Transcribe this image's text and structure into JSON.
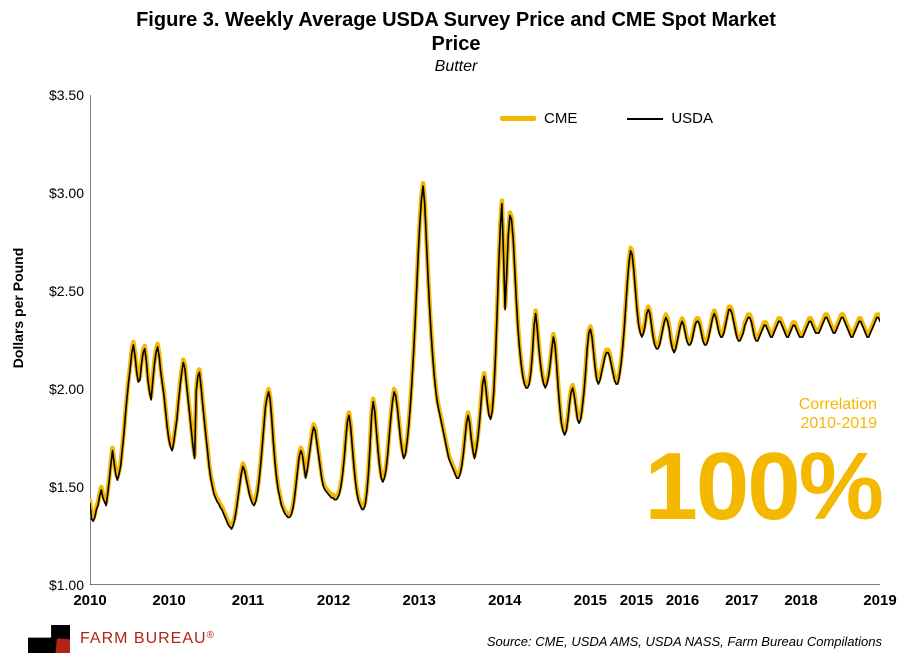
{
  "chart": {
    "type": "line",
    "title_line1": "Figure 3. Weekly Average USDA Survey Price and CME Spot Market",
    "title_line2": "Price",
    "subtitle": "Butter",
    "title_fontsize": 20,
    "subtitle_fontsize": 16,
    "ylabel": "Dollars per Pound",
    "ylabel_fontsize": 14,
    "background_color": "#ffffff",
    "axis_color": "#000000",
    "ylim": [
      1.0,
      3.5
    ],
    "yticks": [
      1.0,
      1.5,
      2.0,
      2.5,
      3.0,
      3.5
    ],
    "ytick_labels": [
      "$1.00",
      "$1.50",
      "$2.00",
      "$2.50",
      "$3.00",
      "$3.50"
    ],
    "x_range_weeks": [
      0,
      480
    ],
    "xtick_positions": [
      0,
      48,
      96,
      148,
      200,
      252,
      304,
      332,
      360,
      396,
      432,
      480
    ],
    "xtick_labels": [
      "2010",
      "2010",
      "2011",
      "2012",
      "2013",
      "2014",
      "2015",
      "2015",
      "2016",
      "2017",
      "2018",
      "2019"
    ],
    "legend": {
      "items": [
        {
          "label": "CME",
          "color": "#f5b800",
          "width": 5
        },
        {
          "label": "USDA",
          "color": "#000000",
          "width": 2
        }
      ]
    },
    "series": {
      "cme": {
        "color": "#f5b800",
        "line_width": 4.5,
        "values": [
          1.43,
          1.35,
          1.34,
          1.36,
          1.4,
          1.42,
          1.47,
          1.5,
          1.46,
          1.44,
          1.42,
          1.48,
          1.55,
          1.63,
          1.7,
          1.64,
          1.58,
          1.55,
          1.58,
          1.62,
          1.7,
          1.78,
          1.88,
          1.97,
          2.05,
          2.12,
          2.2,
          2.24,
          2.18,
          2.1,
          2.05,
          2.06,
          2.14,
          2.2,
          2.22,
          2.16,
          2.06,
          2.0,
          1.96,
          2.05,
          2.14,
          2.2,
          2.23,
          2.18,
          2.1,
          2.04,
          1.98,
          1.9,
          1.82,
          1.76,
          1.72,
          1.7,
          1.74,
          1.8,
          1.86,
          1.95,
          2.03,
          2.1,
          2.15,
          2.12,
          2.04,
          1.96,
          1.88,
          1.8,
          1.72,
          1.66,
          2.0,
          2.08,
          2.1,
          2.03,
          1.94,
          1.86,
          1.78,
          1.7,
          1.62,
          1.56,
          1.52,
          1.48,
          1.46,
          1.44,
          1.43,
          1.41,
          1.4,
          1.38,
          1.36,
          1.34,
          1.32,
          1.31,
          1.3,
          1.32,
          1.35,
          1.4,
          1.46,
          1.52,
          1.58,
          1.62,
          1.6,
          1.56,
          1.52,
          1.48,
          1.45,
          1.43,
          1.42,
          1.44,
          1.48,
          1.54,
          1.62,
          1.72,
          1.82,
          1.92,
          1.97,
          2.0,
          1.96,
          1.86,
          1.74,
          1.64,
          1.56,
          1.5,
          1.46,
          1.42,
          1.4,
          1.38,
          1.37,
          1.36,
          1.36,
          1.37,
          1.4,
          1.45,
          1.52,
          1.6,
          1.67,
          1.7,
          1.68,
          1.62,
          1.56,
          1.6,
          1.66,
          1.72,
          1.78,
          1.82,
          1.8,
          1.74,
          1.68,
          1.62,
          1.56,
          1.52,
          1.5,
          1.49,
          1.48,
          1.47,
          1.46,
          1.46,
          1.45,
          1.45,
          1.46,
          1.48,
          1.52,
          1.58,
          1.66,
          1.76,
          1.85,
          1.88,
          1.82,
          1.72,
          1.62,
          1.54,
          1.48,
          1.44,
          1.42,
          1.4,
          1.4,
          1.42,
          1.48,
          1.58,
          1.72,
          1.88,
          1.95,
          1.9,
          1.8,
          1.7,
          1.62,
          1.56,
          1.54,
          1.56,
          1.6,
          1.68,
          1.78,
          1.87,
          1.95,
          2.0,
          1.98,
          1.92,
          1.84,
          1.76,
          1.7,
          1.66,
          1.68,
          1.74,
          1.82,
          1.92,
          2.04,
          2.18,
          2.34,
          2.52,
          2.7,
          2.86,
          2.98,
          3.05,
          2.96,
          2.78,
          2.6,
          2.44,
          2.3,
          2.18,
          2.08,
          2.0,
          1.94,
          1.9,
          1.86,
          1.82,
          1.78,
          1.74,
          1.7,
          1.66,
          1.64,
          1.62,
          1.6,
          1.58,
          1.56,
          1.56,
          1.58,
          1.62,
          1.68,
          1.76,
          1.84,
          1.88,
          1.84,
          1.76,
          1.7,
          1.66,
          1.7,
          1.76,
          1.84,
          1.94,
          2.04,
          2.08,
          2.02,
          1.94,
          1.88,
          1.86,
          1.9,
          2.0,
          2.18,
          2.4,
          2.64,
          2.84,
          2.96,
          2.7,
          2.42,
          2.6,
          2.8,
          2.9,
          2.88,
          2.78,
          2.62,
          2.46,
          2.32,
          2.22,
          2.14,
          2.08,
          2.04,
          2.02,
          2.02,
          2.04,
          2.1,
          2.2,
          2.34,
          2.4,
          2.32,
          2.22,
          2.14,
          2.08,
          2.04,
          2.02,
          2.04,
          2.08,
          2.14,
          2.22,
          2.28,
          2.24,
          2.14,
          2.02,
          1.92,
          1.84,
          1.8,
          1.78,
          1.8,
          1.86,
          1.94,
          2.0,
          2.02,
          1.98,
          1.92,
          1.86,
          1.84,
          1.86,
          1.92,
          2.0,
          2.1,
          2.22,
          2.3,
          2.32,
          2.28,
          2.2,
          2.12,
          2.06,
          2.04,
          2.06,
          2.1,
          2.14,
          2.18,
          2.2,
          2.2,
          2.18,
          2.14,
          2.1,
          2.06,
          2.04,
          2.04,
          2.08,
          2.14,
          2.22,
          2.32,
          2.44,
          2.56,
          2.66,
          2.72,
          2.7,
          2.62,
          2.52,
          2.42,
          2.34,
          2.3,
          2.28,
          2.3,
          2.34,
          2.4,
          2.42,
          2.4,
          2.34,
          2.28,
          2.24,
          2.22,
          2.22,
          2.24,
          2.28,
          2.32,
          2.36,
          2.38,
          2.36,
          2.32,
          2.26,
          2.22,
          2.2,
          2.22,
          2.26,
          2.3,
          2.34,
          2.36,
          2.34,
          2.3,
          2.26,
          2.24,
          2.24,
          2.26,
          2.3,
          2.34,
          2.36,
          2.36,
          2.34,
          2.3,
          2.26,
          2.24,
          2.24,
          2.26,
          2.3,
          2.34,
          2.38,
          2.4,
          2.38,
          2.34,
          2.3,
          2.28,
          2.28,
          2.3,
          2.34,
          2.38,
          2.42,
          2.42,
          2.4,
          2.36,
          2.32,
          2.28,
          2.26,
          2.26,
          2.28,
          2.3,
          2.34,
          2.36,
          2.38,
          2.38,
          2.36,
          2.32,
          2.28,
          2.26,
          2.26,
          2.28,
          2.3,
          2.32,
          2.34,
          2.34,
          2.32,
          2.3,
          2.28,
          2.28,
          2.3,
          2.32,
          2.34,
          2.36,
          2.36,
          2.34,
          2.32,
          2.3,
          2.28,
          2.28,
          2.3,
          2.32,
          2.34,
          2.34,
          2.32,
          2.3,
          2.28,
          2.28,
          2.28,
          2.3,
          2.32,
          2.34,
          2.36,
          2.36,
          2.34,
          2.32,
          2.3,
          2.3,
          2.3,
          2.32,
          2.34,
          2.36,
          2.38,
          2.38,
          2.36,
          2.34,
          2.32,
          2.3,
          2.3,
          2.32,
          2.34,
          2.36,
          2.38,
          2.38,
          2.36,
          2.34,
          2.32,
          2.3,
          2.28,
          2.28,
          2.3,
          2.32,
          2.34,
          2.36,
          2.36,
          2.34,
          2.32,
          2.3,
          2.28,
          2.28,
          2.3,
          2.32,
          2.34,
          2.36,
          2.38,
          2.38,
          2.36
        ]
      },
      "usda": {
        "color": "#000000",
        "line_width": 1.6,
        "offset": -0.015
      }
    },
    "correlation": {
      "label_line1": "Correlation",
      "label_line2": "2010-2019",
      "value": "100%",
      "color": "#f5b800",
      "value_fontsize": 96
    }
  },
  "footer": {
    "brand_text": "FARM BUREAU",
    "brand_trademark": "®",
    "brand_color": "#b32317",
    "source": "Source: CME, USDA AMS, USDA NASS, Farm Bureau Compilations"
  }
}
